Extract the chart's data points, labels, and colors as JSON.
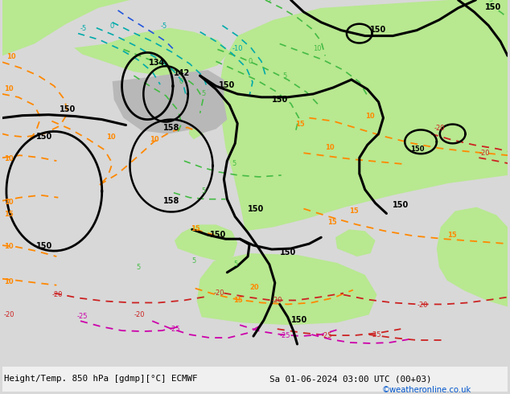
{
  "title_left": "Height/Temp. 850 hPa [gdmp][°C] ECMWF",
  "title_right": "Sa 01-06-2024 03:00 UTC (00+03)",
  "credit": "©weatheronline.co.uk",
  "figsize": [
    6.34,
    4.9
  ],
  "dpi": 100,
  "bg_color": "#d8d8d8",
  "green_light": "#b8e890",
  "gray_land": "#b8b8b8",
  "label_color_orange": "#ff8800",
  "label_color_teal": "#00aaaa",
  "label_color_green": "#44bb44",
  "label_color_red": "#cc2222",
  "label_color_magenta": "#cc00aa",
  "label_color_blue": "#2255dd",
  "credit_color": "#0055cc"
}
